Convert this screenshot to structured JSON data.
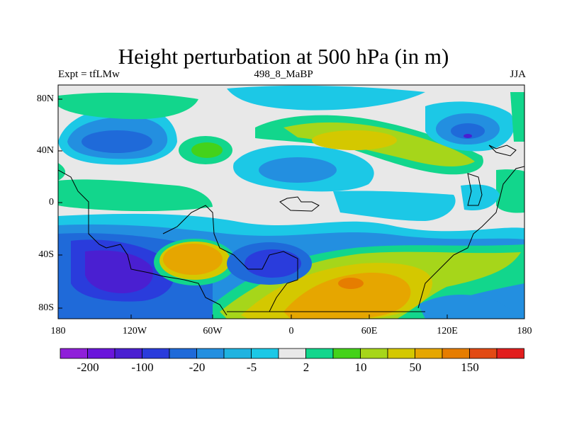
{
  "title": "Height perturbation at 500 hPa (in m)",
  "subtitle_left": "Expt = tfLMw",
  "subtitle_center": "498_8_MaBP",
  "subtitle_right": "JJA",
  "y_axis_labels": [
    "80N",
    "40N",
    "0",
    "40S",
    "80S"
  ],
  "x_axis_labels": [
    "180",
    "120W",
    "60W",
    "0",
    "60E",
    "120E",
    "180"
  ],
  "colorbar": {
    "colors": [
      "#8f1fd9",
      "#6a16db",
      "#4a1fd1",
      "#2a3cdc",
      "#1f6ad9",
      "#238fe0",
      "#1fb3e0",
      "#1cc8e6",
      "#e8e8e8",
      "#12d68c",
      "#44d21a",
      "#a6d61a",
      "#d4c800",
      "#e6a600",
      "#e67d00",
      "#e24a14",
      "#e21e1e"
    ],
    "labels": [
      "-200",
      "-100",
      "-20",
      "-5",
      "2",
      "10",
      "50",
      "150"
    ]
  },
  "map": {
    "background": "#e8e8e8",
    "border_color": "#000000"
  }
}
